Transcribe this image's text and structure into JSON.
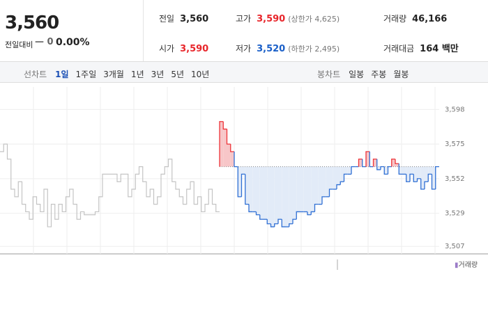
{
  "header": {
    "price": "3,560",
    "change_label": "전일대비",
    "change": "0",
    "rate": "0.00%",
    "stats": [
      {
        "label": "전일",
        "value": "3,560"
      },
      {
        "label": "고가",
        "value": "3,590",
        "note": "(상한가 4,625)"
      },
      {
        "label": "거래량",
        "value": "46,166"
      },
      {
        "label": "시가",
        "value": "3,590"
      },
      {
        "label": "저가",
        "value": "3,520",
        "note": "(하한가 2,495)"
      },
      {
        "label": "거래대금",
        "value": "164 백만"
      }
    ]
  },
  "tabs": {
    "line_label": "선차트",
    "line_tabs": [
      "1일",
      "1주일",
      "3개월",
      "1년",
      "3년",
      "5년",
      "10년"
    ],
    "active": 0,
    "candle_label": "봉차트",
    "candle_tabs": [
      "일봉",
      "주봉",
      "월봉"
    ]
  },
  "legend": "거래량",
  "chart_data": {
    "type": "line",
    "base": 3560,
    "ylim": [
      3502,
      3613
    ],
    "yticks": [
      {
        "value": 3507,
        "label": "3,507"
      },
      {
        "value": 3529,
        "label": "3,529"
      },
      {
        "value": 3552,
        "label": "3,552"
      },
      {
        "value": 3575,
        "label": "3,575"
      },
      {
        "value": 3598,
        "label": "3,598"
      }
    ],
    "grid": true,
    "series": [
      {
        "color": "#c4c4c4",
        "values": [
          3570,
          3575,
          3565,
          3545,
          3540,
          3550,
          3535,
          3530,
          3525,
          3540,
          3535,
          3530,
          3545,
          3520,
          3535,
          3525,
          3535,
          3530,
          3540,
          3545,
          3535,
          3525,
          3530,
          3528,
          3528,
          3528,
          3530,
          3540,
          3555,
          3555,
          3555,
          3555,
          3550,
          3555,
          3555,
          3540,
          3545,
          3555,
          3560,
          3550,
          3540,
          3545,
          3535,
          3540,
          3555,
          3560,
          3565,
          3550,
          3545,
          3540,
          3535,
          3545,
          3550,
          3535,
          3540,
          3530,
          3535,
          3545,
          3535,
          3530,
          null,
          null,
          null,
          null,
          null,
          null,
          null,
          null,
          null,
          null,
          null,
          null,
          null,
          null,
          null,
          null,
          null,
          null,
          null,
          null,
          null,
          null,
          null,
          null,
          null,
          null,
          null,
          null,
          null,
          null,
          null,
          null,
          null,
          null,
          null,
          null,
          null,
          null,
          null,
          null,
          null,
          null,
          null,
          null,
          null,
          null,
          null,
          null,
          null,
          null,
          null,
          null,
          null,
          null,
          null,
          null,
          null,
          null,
          null,
          null
        ]
      },
      {
        "color": "#2f6fd4",
        "up_color": "#ee3338",
        "fill": "#e2ebf8",
        "up_fill": "#f7c6c8",
        "values": [
          null,
          null,
          null,
          null,
          null,
          null,
          null,
          null,
          null,
          null,
          null,
          null,
          null,
          null,
          null,
          null,
          null,
          null,
          null,
          null,
          null,
          null,
          null,
          null,
          null,
          null,
          null,
          null,
          null,
          null,
          null,
          null,
          null,
          null,
          null,
          null,
          null,
          null,
          null,
          null,
          null,
          null,
          null,
          null,
          null,
          null,
          null,
          null,
          null,
          null,
          null,
          null,
          null,
          null,
          null,
          null,
          null,
          null,
          null,
          null,
          3590,
          3585,
          3575,
          3570,
          3560,
          3540,
          3555,
          3535,
          3530,
          3530,
          3528,
          3525,
          3525,
          3522,
          3520,
          3522,
          3525,
          3520,
          3520,
          3522,
          3525,
          3530,
          3530,
          3530,
          3528,
          3530,
          3535,
          3535,
          3540,
          3540,
          3545,
          3545,
          3548,
          3550,
          3555,
          3555,
          3560,
          3560,
          3565,
          3560,
          3570,
          3560,
          3565,
          3558,
          3560,
          3555,
          3560,
          3565,
          3562,
          3555,
          3555,
          3550,
          3555,
          3550,
          3552,
          3545,
          3550,
          3555,
          3545,
          3560
        ]
      }
    ]
  }
}
